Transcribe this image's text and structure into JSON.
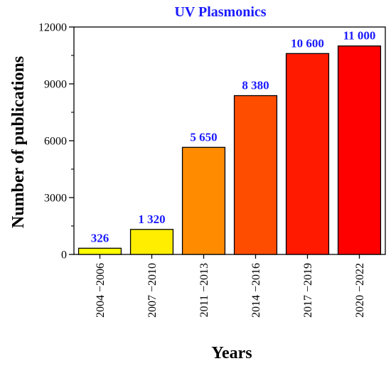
{
  "chart_data": {
    "type": "bar",
    "title": "UV Plasmonics",
    "xlabel": "Years",
    "ylabel": "Number of publications",
    "categories": [
      "2004 −2006",
      "2007 −2010",
      "2011 −2013",
      "2014 −2016",
      "2017 −2019",
      "2020 −2022"
    ],
    "values": [
      326,
      1320,
      5650,
      8380,
      10600,
      11000
    ],
    "value_labels": [
      "326",
      "1 320",
      "5 650",
      "8 380",
      "10 600",
      "11 000"
    ],
    "ylim": [
      0,
      12000
    ],
    "yticks": [
      0,
      3000,
      6000,
      9000,
      12000
    ],
    "ytick_labels": [
      "0",
      "3000",
      "6000",
      "9000",
      "12000"
    ],
    "grid": false,
    "colors": {
      "bars": [
        "#ffff00",
        "#ffee00",
        "#ff8c00",
        "#ff4d00",
        "#ff1a00",
        "#ff0000"
      ],
      "title": "#1a1aff",
      "data_labels": "#1a1aff"
    }
  }
}
